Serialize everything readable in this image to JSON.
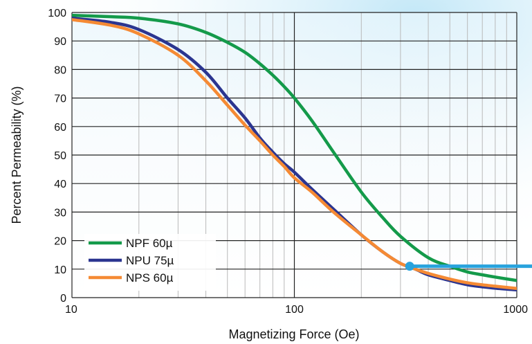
{
  "chart_data": {
    "type": "line",
    "xlabel": "Magnetizing Force (Oe)",
    "ylabel": "Percent Permeability (%)",
    "x_scale": "log",
    "xlim": [
      10,
      1000
    ],
    "ylim": [
      0,
      100
    ],
    "x_ticks": [
      "10",
      "100",
      "1000"
    ],
    "y_ticks": [
      "0",
      "10",
      "20",
      "30",
      "40",
      "50",
      "60",
      "70",
      "80",
      "90",
      "100"
    ],
    "grid": true,
    "legend_position": "bottom-left",
    "series": [
      {
        "name": "NPF 60µ",
        "color": "#149a4a",
        "x": [
          10,
          15,
          20,
          30,
          40,
          50,
          60,
          70,
          80,
          90,
          100,
          120,
          150,
          200,
          250,
          300,
          400,
          500,
          600,
          700,
          800,
          1000
        ],
        "values": [
          99,
          98.5,
          98,
          96,
          93,
          89.5,
          86,
          82,
          78,
          74,
          70,
          62,
          51,
          37,
          28,
          21.5,
          14,
          11,
          9,
          8,
          7.2,
          6
        ]
      },
      {
        "name": "NPU 75µ",
        "color": "#2b3590",
        "x": [
          10,
          15,
          20,
          30,
          40,
          50,
          60,
          70,
          80,
          90,
          100,
          120,
          150,
          200,
          250,
          300,
          350,
          400,
          500,
          600,
          700,
          800,
          1000
        ],
        "values": [
          98,
          96.5,
          94,
          87,
          79,
          70,
          63,
          56,
          51,
          47,
          44,
          38,
          31,
          22,
          16,
          12,
          10,
          8,
          6,
          4.5,
          3.8,
          3.3,
          2.7
        ]
      },
      {
        "name": "NPS 60µ",
        "color": "#f58a34",
        "x": [
          10,
          15,
          20,
          30,
          40,
          50,
          60,
          70,
          80,
          90,
          100,
          120,
          150,
          200,
          250,
          300,
          350,
          400,
          500,
          600,
          700,
          800,
          1000
        ],
        "values": [
          97.5,
          95.5,
          92.5,
          85,
          76,
          67.5,
          60.5,
          55,
          50,
          46,
          42,
          37,
          30,
          22,
          16,
          12,
          10,
          8.5,
          6.5,
          5.2,
          4.5,
          4,
          3.2
        ]
      }
    ]
  },
  "accent": {
    "marker_color": "#29a3dd",
    "marker_point": {
      "x": 330,
      "y": 11
    }
  }
}
